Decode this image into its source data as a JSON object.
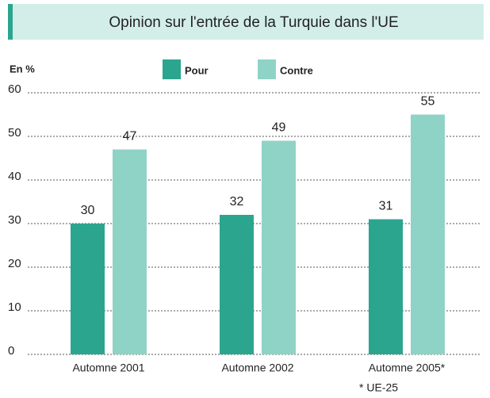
{
  "chart_data": {
    "type": "bar",
    "title": "Opinion sur l'entrée de la Turquie dans l'UE",
    "y_label": "En %",
    "categories": [
      "Automne 2001",
      "Automne 2002",
      "Automne 2005*"
    ],
    "series": [
      {
        "name": "Pour",
        "color": "#2ca58f",
        "values": [
          30,
          32,
          31
        ]
      },
      {
        "name": "Contre",
        "color": "#8fd3c6",
        "values": [
          47,
          49,
          55
        ]
      }
    ],
    "ylim": [
      0,
      60
    ],
    "yticks": [
      0,
      10,
      20,
      30,
      40,
      50,
      60
    ],
    "grid": true,
    "note": "* UE-25"
  }
}
